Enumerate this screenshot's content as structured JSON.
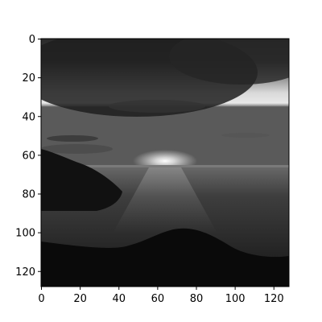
{
  "chart_data": {
    "type": "image",
    "title": "",
    "xlabel": "",
    "ylabel": "",
    "image_shape": [
      128,
      128
    ],
    "xlim": [
      0,
      128
    ],
    "ylim": [
      128,
      0
    ],
    "x_ticks": [
      0,
      20,
      40,
      60,
      80,
      100,
      120
    ],
    "y_ticks": [
      0,
      20,
      40,
      60,
      80,
      100,
      120
    ],
    "x_tick_labels": [
      "0",
      "20",
      "40",
      "60",
      "80",
      "100",
      "120"
    ],
    "y_tick_labels": [
      "0",
      "20",
      "40",
      "60",
      "80",
      "100",
      "120"
    ],
    "colormap": "gray",
    "scene": "grayscale sunset over the sea with clouds and dark coastal hills"
  },
  "colors": {
    "axis": "#000000",
    "sky_dark": "#2c2c2c",
    "sky_light": "#e6e6e6",
    "sun": "#ffffff",
    "sea": "#3a3a3a",
    "land": "#0d0d0d"
  }
}
